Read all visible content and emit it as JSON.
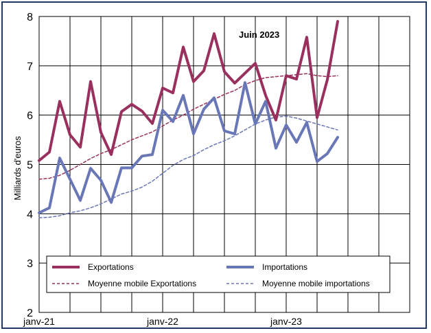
{
  "chart_data": {
    "type": "line",
    "annotation": "Juin 2023",
    "ylabel": "Milliards d'euros",
    "xlabel": "",
    "ylim": [
      2,
      8
    ],
    "yticks": [
      2,
      3,
      4,
      5,
      6,
      7,
      8
    ],
    "xticks": [
      {
        "index": 0,
        "label": "janv-21"
      },
      {
        "index": 12,
        "label": "janv-22"
      },
      {
        "index": 24,
        "label": "janv-23"
      }
    ],
    "x_count": 36,
    "grid": true,
    "legend_position": "bottom",
    "series": [
      {
        "name": "Exportations",
        "color": "#99305e",
        "style": "solid",
        "values": [
          5.08,
          5.25,
          6.28,
          5.6,
          5.35,
          6.68,
          5.65,
          5.2,
          6.07,
          6.22,
          6.08,
          5.83,
          6.55,
          6.45,
          7.38,
          6.68,
          6.9,
          7.65,
          6.88,
          6.65,
          6.85,
          7.05,
          6.4,
          5.9,
          6.8,
          6.73,
          7.58,
          5.95,
          6.72,
          7.9
        ]
      },
      {
        "name": "Importations",
        "color": "#6a77b6",
        "style": "solid",
        "values": [
          4.02,
          4.12,
          5.13,
          4.7,
          4.27,
          4.92,
          4.68,
          4.23,
          4.93,
          4.93,
          5.17,
          5.2,
          6.1,
          5.87,
          6.4,
          5.62,
          6.12,
          6.35,
          5.68,
          5.62,
          6.66,
          5.82,
          6.28,
          5.33,
          5.8,
          5.45,
          5.85,
          5.06,
          5.22,
          5.55
        ]
      },
      {
        "name": "Moyenne mobile Exportations",
        "color": "#99305e",
        "style": "dashed",
        "values": [
          4.7,
          4.72,
          4.78,
          4.88,
          5.0,
          5.12,
          5.22,
          5.3,
          5.4,
          5.5,
          5.58,
          5.66,
          5.78,
          5.9,
          6.0,
          6.12,
          6.22,
          6.32,
          6.42,
          6.5,
          6.62,
          6.7,
          6.76,
          6.78,
          6.8,
          6.82,
          6.84,
          6.8,
          6.78,
          6.8
        ]
      },
      {
        "name": "Moyenne mobile importations",
        "color": "#6a77b6",
        "style": "dashed",
        "values": [
          3.92,
          3.93,
          3.96,
          4.02,
          4.06,
          4.12,
          4.2,
          4.3,
          4.4,
          4.46,
          4.54,
          4.66,
          4.82,
          4.98,
          5.1,
          5.18,
          5.3,
          5.4,
          5.48,
          5.58,
          5.7,
          5.82,
          5.9,
          5.96,
          5.98,
          5.94,
          5.88,
          5.82,
          5.76,
          5.7
        ]
      }
    ]
  }
}
